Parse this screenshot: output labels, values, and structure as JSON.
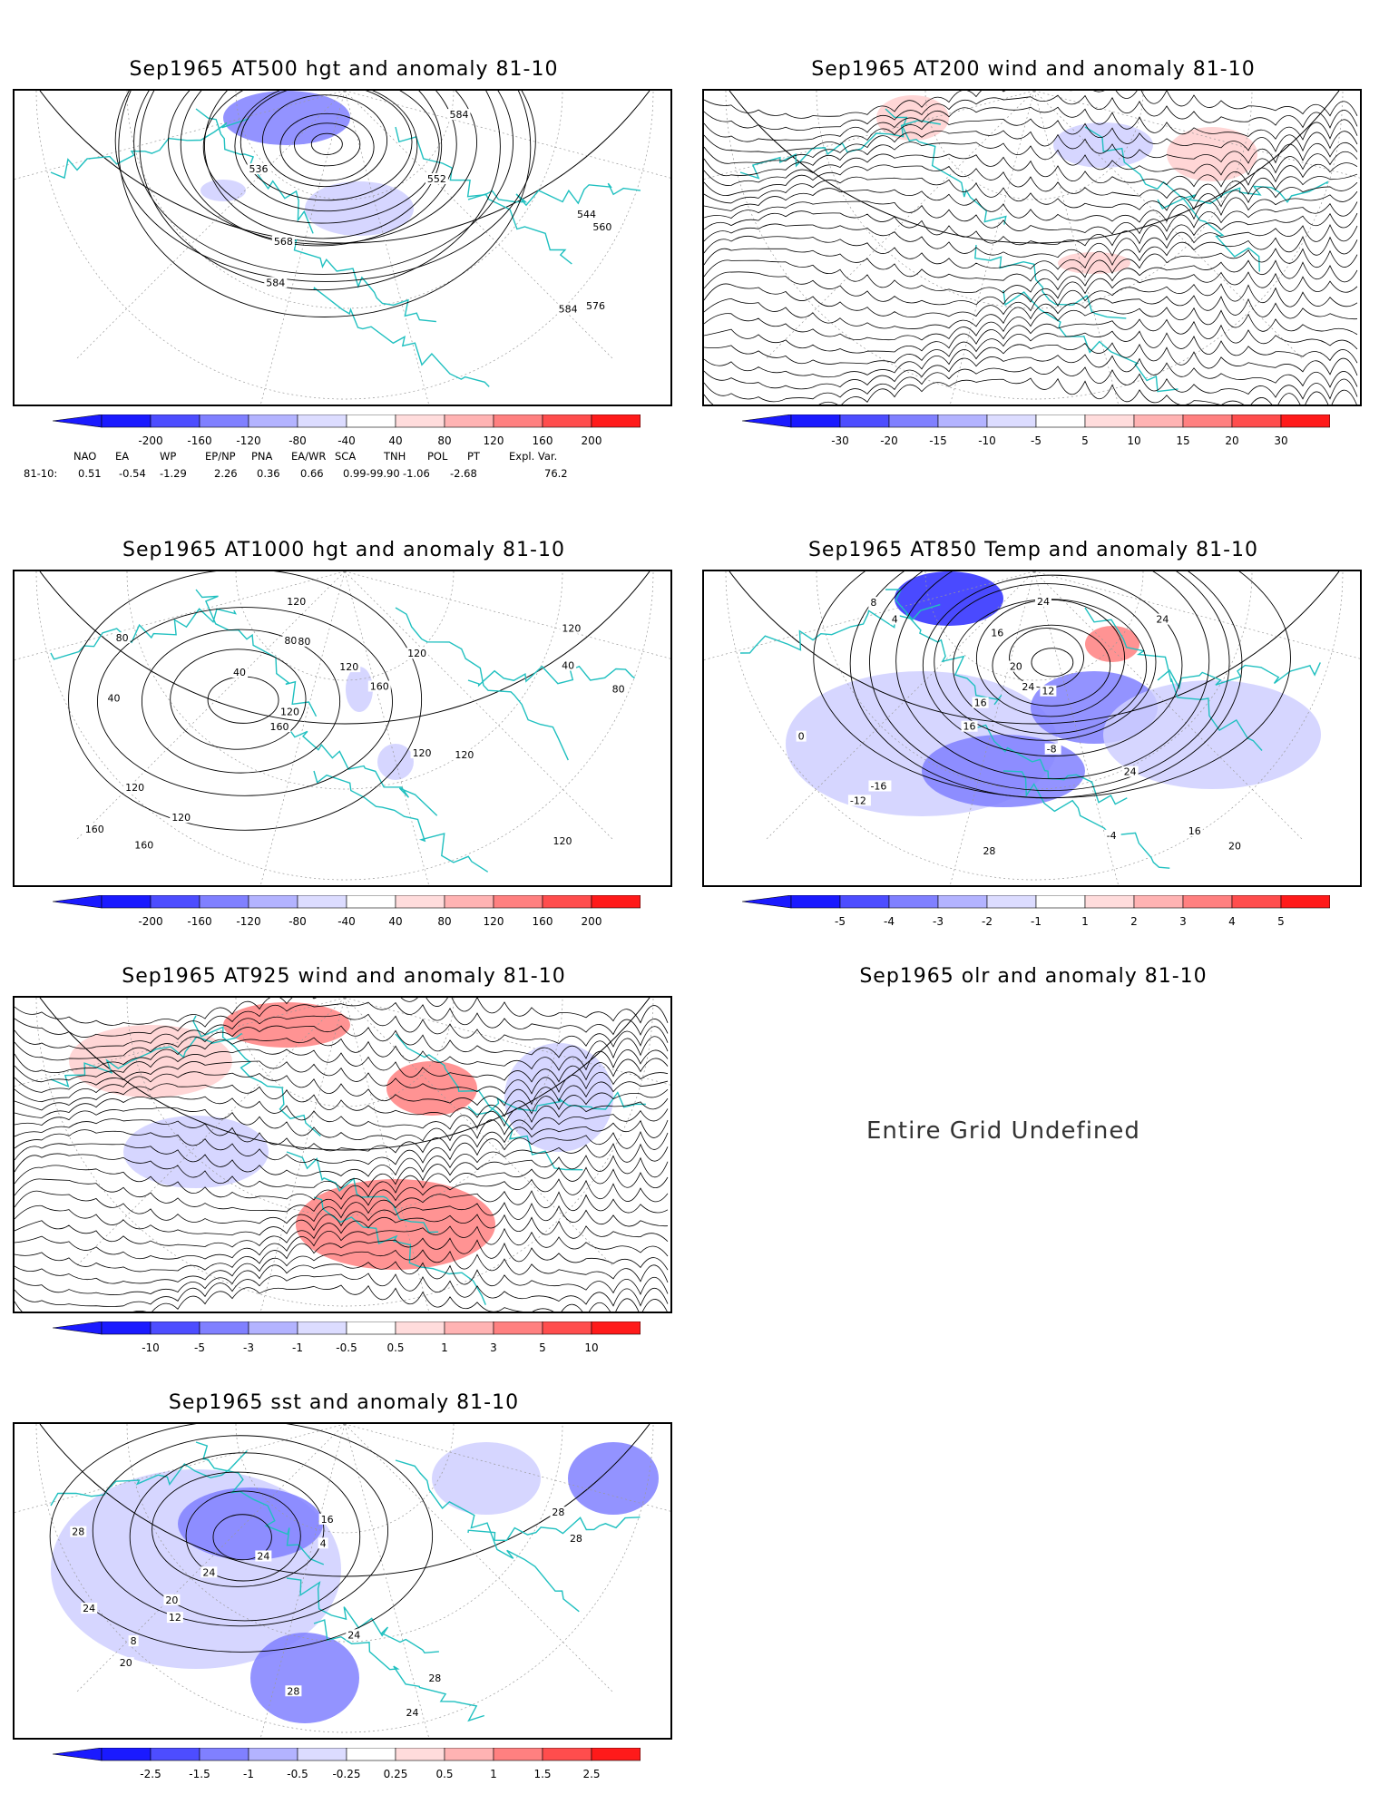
{
  "panels": [
    {
      "id": "p1",
      "title": "Sep1965 AT500 hgt and anomaly 81-10",
      "contour_labels": [
        "536",
        "544",
        "552",
        "560",
        "568",
        "576",
        "584",
        "584",
        "584"
      ]
    },
    {
      "id": "p2",
      "title": "Sep1965 AT200 wind and anomaly 81-10",
      "contour_labels": []
    },
    {
      "id": "p3",
      "title": "Sep1965 AT1000 hgt and anomaly 81-10",
      "contour_labels": [
        "120",
        "40",
        "120",
        "160",
        "120",
        "160",
        "80",
        "120",
        "120",
        "40",
        "160",
        "120",
        "80",
        "160",
        "120",
        "80",
        "120",
        "80",
        "120",
        "40",
        "120"
      ]
    },
    {
      "id": "p4",
      "title": "Sep1965 AT850 Temp and anomaly 81-10",
      "contour_labels": [
        "-12",
        "-4",
        "-8",
        "0",
        "4",
        "8",
        "28",
        "16",
        "-16",
        "12",
        "16",
        "20",
        "24",
        "24",
        "24",
        "16",
        "20",
        "24",
        "16"
      ]
    },
    {
      "id": "p5",
      "title": "Sep1965 AT925 wind and anomaly 81-10",
      "contour_labels": []
    },
    {
      "id": "p6",
      "title": "Sep1965 olr and anomaly 81-10",
      "message": "Entire Grid Undefined"
    },
    {
      "id": "p7",
      "title": "Sep1965 sst and anomaly 81-10",
      "contour_labels": [
        "28",
        "24",
        "28",
        "12",
        "8",
        "4",
        "16",
        "20",
        "24",
        "20",
        "24",
        "28",
        "28",
        "24",
        "28",
        "24"
      ]
    }
  ],
  "colorbars": {
    "hgt": [
      "-200",
      "-160",
      "-120",
      "-80",
      "-40",
      "40",
      "80",
      "120",
      "160",
      "200"
    ],
    "wind200": [
      "-30",
      "-20",
      "-15",
      "-10",
      "-5",
      "5",
      "10",
      "15",
      "20",
      "30"
    ],
    "temp": [
      "-5",
      "-4",
      "-3",
      "-2",
      "-1",
      "1",
      "2",
      "3",
      "4",
      "5"
    ],
    "wind925": [
      "-10",
      "-5",
      "-3",
      "-1",
      "-0.5",
      "0.5",
      "1",
      "3",
      "5",
      "10"
    ],
    "sst": [
      "-2.5",
      "-1.5",
      "-1",
      "-0.5",
      "-0.25",
      "0.25",
      "0.5",
      "1",
      "1.5",
      "2.5"
    ]
  },
  "colorbar_colors": [
    "#1a1aff",
    "#4d4dff",
    "#8080ff",
    "#b3b3ff",
    "#dcdcff",
    "#ffffff",
    "#ffdcdc",
    "#ffb3b3",
    "#ff8080",
    "#ff4d4d",
    "#ff1a1a"
  ],
  "teleconnections": {
    "headers": [
      "NAO",
      "EA",
      "WP",
      "EP/NP",
      "PNA",
      "EA/WR",
      "SCA",
      "TNH",
      "POL",
      "PT",
      "Expl. Var."
    ],
    "row_label": "81-10:",
    "values": [
      "0.51",
      "-0.54",
      "-1.29",
      "2.26",
      "0.36",
      "0.66",
      "0.99-99.90",
      "-1.06",
      "-2.68",
      "",
      "76.2"
    ]
  }
}
